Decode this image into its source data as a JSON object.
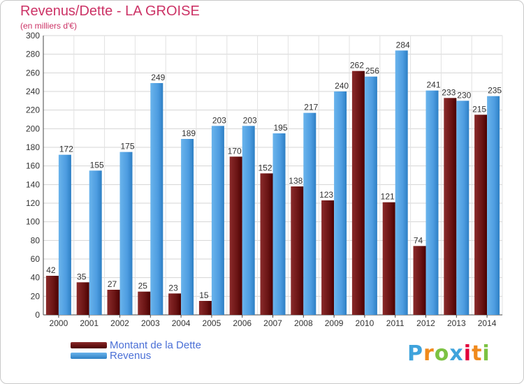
{
  "title": "Revenus/Dette - LA GROISE",
  "subtitle": "(en milliers d'€)",
  "colors": {
    "title": "#cc3366",
    "dette_top": "#8a2a2a",
    "dette_bottom": "#4a0000",
    "revenus_top": "#6ab4ec",
    "revenus_bottom": "#2d7fc4",
    "legend_text": "#4a6fd6"
  },
  "legend": {
    "position": "bottom-left",
    "dette_label": "Montant de la Dette",
    "revenus_label": "Revenus"
  },
  "logo": {
    "text": "Proxiti",
    "letters": [
      "P",
      "r",
      "o",
      "x",
      "i",
      "t",
      "i"
    ],
    "colors": [
      "#3fa3dc",
      "#f08a1c",
      "#7cc242",
      "#3fa3dc",
      "#e2003a",
      "#f08a1c",
      "#7cc242"
    ]
  },
  "chart_data": {
    "type": "bar",
    "title": "Revenus/Dette - LA GROISE",
    "subtitle": "(en milliers d'€)",
    "categories": [
      "2000",
      "2001",
      "2002",
      "2003",
      "2004",
      "2005",
      "2006",
      "2007",
      "2008",
      "2009",
      "2010",
      "2011",
      "2012",
      "2013",
      "2014"
    ],
    "series": [
      {
        "name": "Montant de la Dette",
        "values": [
          42,
          35,
          27,
          25,
          23,
          15,
          170,
          152,
          138,
          123,
          262,
          121,
          74,
          233,
          215
        ]
      },
      {
        "name": "Revenus",
        "values": [
          172,
          155,
          175,
          249,
          189,
          203,
          203,
          195,
          217,
          240,
          256,
          284,
          241,
          230,
          235
        ]
      }
    ],
    "ylim": [
      0,
      300
    ],
    "yticks": [
      0,
      20,
      40,
      60,
      80,
      100,
      120,
      140,
      160,
      180,
      200,
      220,
      240,
      260,
      280,
      300
    ],
    "grid": true,
    "legend_position": "bottom-left"
  }
}
